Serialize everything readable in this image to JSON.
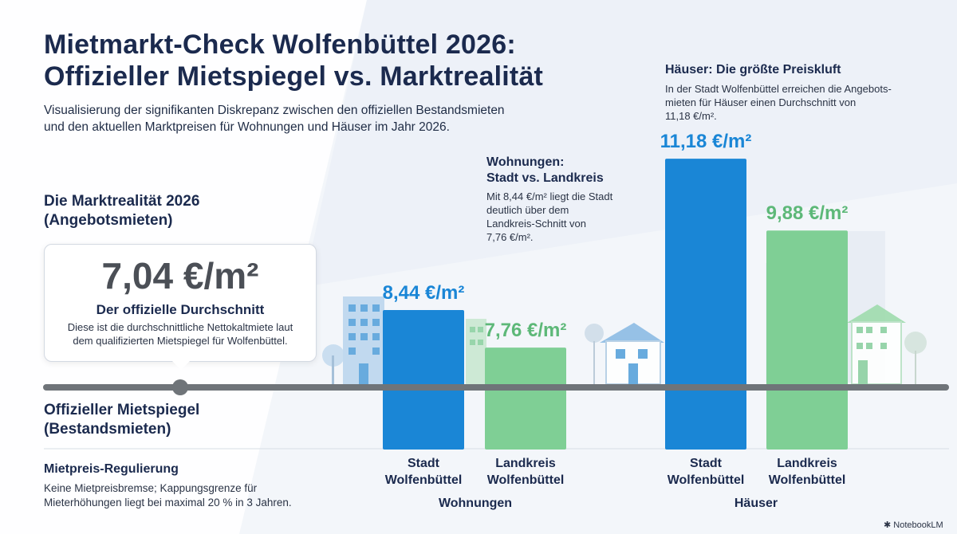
{
  "title_line1": "Mietmarkt-Check Wolfenbüttel 2026:",
  "title_line2": "Offizieller Mietspiegel vs. Marktrealität",
  "subtitle_line1": "Visualisierung der signifikanten Diskrepanz zwischen den offiziellen Bestandsmieten",
  "subtitle_line2": "und den aktuellen Marktpreisen für Wohnungen und Häuser im Jahr 2026.",
  "market_heading_line1": "Die Marktrealität 2026",
  "market_heading_line2": "(Angebotsmieten)",
  "official": {
    "value": "7,04 €/m²",
    "label": "Der offizielle Durchschnitt",
    "desc_line1": "Diese ist die durchschnittliche Nettokaltmiete laut",
    "desc_line2": "dem qualifizierten Mietspiegel für Wolfenbüttel."
  },
  "official_heading_line1": "Offizieller Mietspiegel",
  "official_heading_line2": "(Bestandsmieten)",
  "regulation": {
    "title": "Mietpreis-Regulierung",
    "desc_line1": "Keine Mietpreisbremse; Kappungsgrenze für",
    "desc_line2": "Mieterhöhungen liegt bei maximal 20 % in 3 Jahren."
  },
  "annotation_wohnungen": {
    "title_line1": "Wohnungen:",
    "title_line2": "Stadt vs. Landkreis",
    "desc_line1": "Mit 8,44 €/m² liegt die Stadt",
    "desc_line2": "deutlich über dem",
    "desc_line3": "Landkreis-Schnitt von",
    "desc_line4": "7,76 €/m²."
  },
  "annotation_haeuser": {
    "title": "Häuser: Die größte Preiskluft",
    "desc_line1": "In der Stadt Wolfenbüttel erreichen die Angebots-",
    "desc_line2": "mieten für Häuser einen Durchschnitt von",
    "desc_line3": "11,18 €/m²."
  },
  "logo": "NotebookLM",
  "chart_data": {
    "type": "bar",
    "groups": [
      "Wohnungen",
      "Häuser"
    ],
    "categories_line1": [
      "Stadt",
      "Landkreis"
    ],
    "categories_line2": [
      "Wolfenbüttel",
      "Wolfenbüttel"
    ],
    "baseline_value": 7.04,
    "bars": [
      {
        "group": "Wohnungen",
        "category": "Stadt Wolfenbüttel",
        "value": 8.44,
        "label": "8,44 €/m²",
        "color": "#1a86d6",
        "label_color": "#1a86d6"
      },
      {
        "group": "Wohnungen",
        "category": "Landkreis Wolfenbüttel",
        "value": 7.76,
        "label": "7,76 €/m²",
        "color": "#7fcf95",
        "label_color": "#5db878"
      },
      {
        "group": "Häuser",
        "category": "Stadt Wolfenbüttel",
        "value": 11.18,
        "label": "11,18 €/m²",
        "color": "#1a86d6",
        "label_color": "#1a86d6"
      },
      {
        "group": "Häuser",
        "category": "Landkreis Wolfenbüttel",
        "value": 9.88,
        "label": "9,88 €/m²",
        "color": "#7fcf95",
        "label_color": "#5db878"
      }
    ]
  }
}
